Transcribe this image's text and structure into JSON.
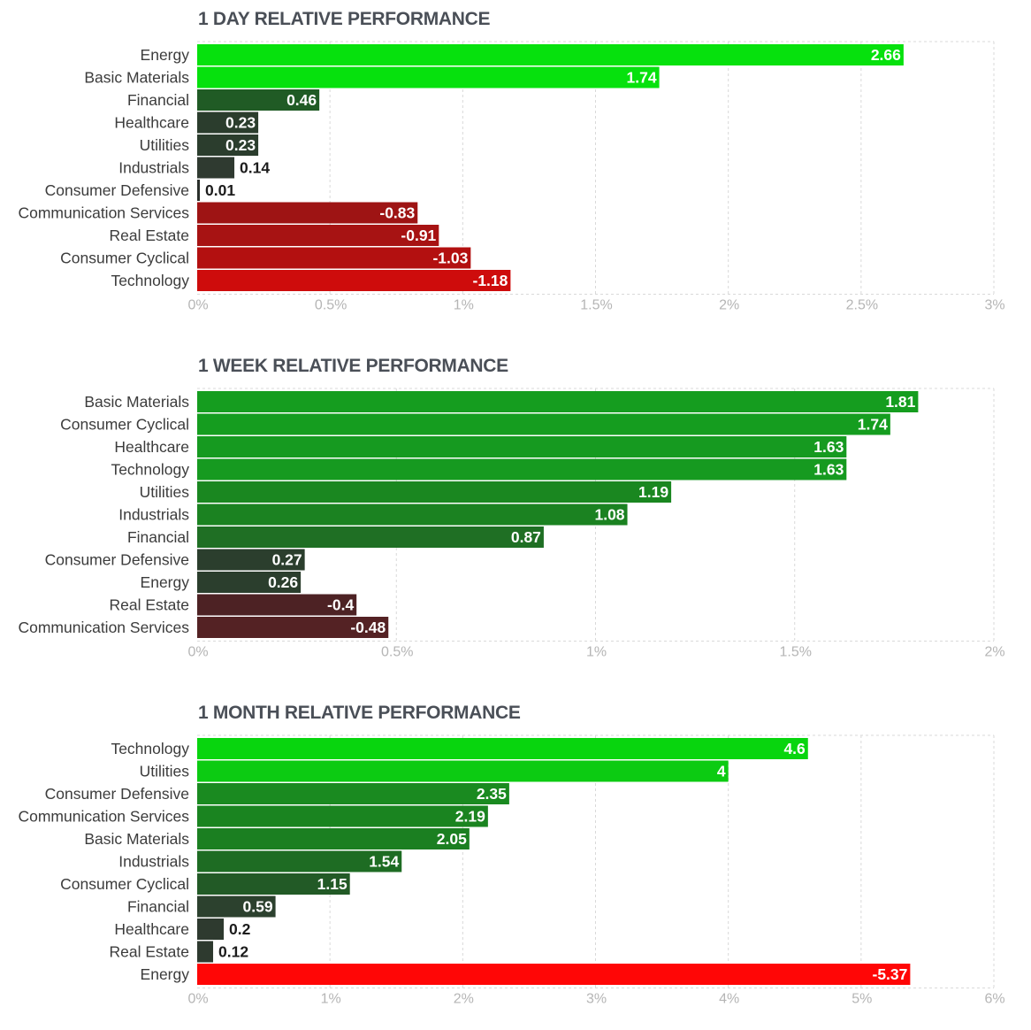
{
  "chart_data": [
    {
      "type": "bar",
      "orientation": "horizontal",
      "title": "1 DAY RELATIVE PERFORMANCE",
      "categories": [
        "Energy",
        "Basic Materials",
        "Financial",
        "Healthcare",
        "Utilities",
        "Industrials",
        "Consumer Defensive",
        "Communication Services",
        "Real Estate",
        "Consumer Cyclical",
        "Technology"
      ],
      "values": [
        2.66,
        1.74,
        0.46,
        0.23,
        0.23,
        0.14,
        0.01,
        -0.83,
        -0.91,
        -1.03,
        -1.18
      ],
      "value_labels": [
        "2.66",
        "1.74",
        "0.46",
        "0.23",
        "0.23",
        "0.14",
        "0.01",
        "-0.83",
        "-0.91",
        "-1.03",
        "-1.18"
      ],
      "xlim": [
        0,
        3
      ],
      "x_ticks": [
        "0%",
        "0.5%",
        "1%",
        "1.5%",
        "2%",
        "2.5%",
        "3%"
      ],
      "bar_colors": [
        "#06e10d",
        "#06e10d",
        "#205b25",
        "#2b3d2d",
        "#2b3d2d",
        "#2f3a30",
        "#2a2f2b",
        "#9e1414",
        "#a71313",
        "#b31010",
        "#ce0c0c"
      ],
      "grid": true,
      "xlabel": "",
      "ylabel": ""
    },
    {
      "type": "bar",
      "orientation": "horizontal",
      "title": "1 WEEK RELATIVE PERFORMANCE",
      "categories": [
        "Basic Materials",
        "Consumer Cyclical",
        "Healthcare",
        "Technology",
        "Utilities",
        "Industrials",
        "Financial",
        "Consumer Defensive",
        "Energy",
        "Real Estate",
        "Communication Services"
      ],
      "values": [
        1.81,
        1.74,
        1.63,
        1.63,
        1.19,
        1.08,
        0.87,
        0.27,
        0.26,
        -0.4,
        -0.48
      ],
      "value_labels": [
        "1.81",
        "1.74",
        "1.63",
        "1.63",
        "1.19",
        "1.08",
        "0.87",
        "0.27",
        "0.26",
        "-0.4",
        "-0.48"
      ],
      "xlim": [
        0,
        2
      ],
      "x_ticks": [
        "0%",
        "0.5%",
        "1%",
        "1.5%",
        "2%"
      ],
      "bar_colors": [
        "#159d1f",
        "#159d1f",
        "#169a20",
        "#169a20",
        "#1a8720",
        "#1b8221",
        "#1f6f24",
        "#2b3e2d",
        "#2b3e2d",
        "#4d2224",
        "#542224"
      ],
      "grid": true,
      "xlabel": "",
      "ylabel": ""
    },
    {
      "type": "bar",
      "orientation": "horizontal",
      "title": "1 MONTH RELATIVE PERFORMANCE",
      "categories": [
        "Technology",
        "Utilities",
        "Consumer Defensive",
        "Communication Services",
        "Basic Materials",
        "Industrials",
        "Consumer Cyclical",
        "Financial",
        "Healthcare",
        "Real Estate",
        "Energy"
      ],
      "values": [
        4.6,
        4,
        2.35,
        2.19,
        2.05,
        1.54,
        1.15,
        0.59,
        0.2,
        0.12,
        -5.37
      ],
      "value_labels": [
        "4.6",
        "4",
        "2.35",
        "2.19",
        "2.05",
        "1.54",
        "1.15",
        "0.59",
        "0.2",
        "0.12",
        "-5.37"
      ],
      "xlim": [
        0,
        6
      ],
      "x_ticks": [
        "0%",
        "1%",
        "2%",
        "3%",
        "4%",
        "5%",
        "6%"
      ],
      "bar_colors": [
        "#08d50e",
        "#0ccb12",
        "#1a8a20",
        "#1a8420",
        "#1b7f21",
        "#1e6c23",
        "#225a26",
        "#2c412e",
        "#2e3a2f",
        "#2e3a2f",
        "#ff0606"
      ],
      "grid": true,
      "xlabel": "",
      "ylabel": ""
    }
  ]
}
